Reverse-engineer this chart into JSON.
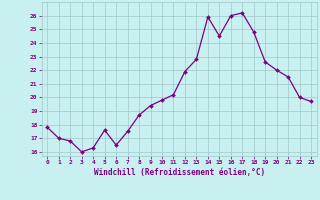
{
  "x": [
    0,
    1,
    2,
    3,
    4,
    5,
    6,
    7,
    8,
    9,
    10,
    11,
    12,
    13,
    14,
    15,
    16,
    17,
    18,
    19,
    20,
    21,
    22,
    23
  ],
  "y": [
    17.8,
    17.0,
    16.8,
    16.0,
    16.3,
    17.6,
    16.5,
    17.5,
    18.7,
    19.4,
    19.8,
    20.2,
    21.9,
    22.8,
    25.9,
    24.5,
    26.0,
    26.2,
    24.8,
    22.6,
    22.0,
    21.5,
    20.0,
    19.7
  ],
  "line_color": "#800080",
  "marker_color": "#800080",
  "bg_color": "#c8f0f0",
  "grid_color": "#a0c8c8",
  "axis_label_color": "#800080",
  "tick_color": "#800080",
  "xlabel": "Windchill (Refroidissement éolien,°C)",
  "ylim": [
    16,
    27
  ],
  "yticks": [
    16,
    17,
    18,
    19,
    20,
    21,
    22,
    23,
    24,
    25,
    26
  ],
  "xticks": [
    0,
    1,
    2,
    3,
    4,
    5,
    6,
    7,
    8,
    9,
    10,
    11,
    12,
    13,
    14,
    15,
    16,
    17,
    18,
    19,
    20,
    21,
    22,
    23
  ]
}
